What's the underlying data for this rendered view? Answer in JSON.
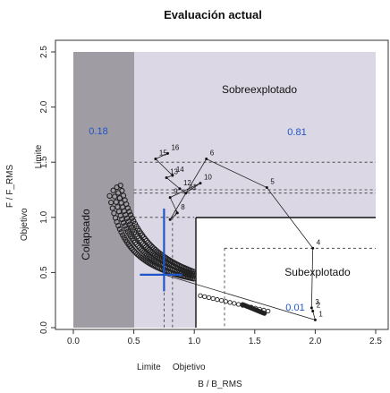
{
  "chart_data": {
    "type": "scatter",
    "title": "Evaluación actual",
    "xlabel": "B / B_RMS",
    "ylabel": "F / F_RMS",
    "xlim": [
      0,
      2.5
    ],
    "ylim": [
      0,
      2.5
    ],
    "x_ticks": [
      "0.0",
      "0.5",
      "1.0",
      "1.5",
      "2.0",
      "2.5"
    ],
    "y_ticks": [
      "0.0",
      "0.5",
      "1.0",
      "1.5",
      "2.0",
      "2.5"
    ],
    "x_ref_labels": [
      {
        "label": "Limite",
        "x": 0.75
      },
      {
        "label": "Objetivo",
        "x": 1.0
      }
    ],
    "y_ref_labels": [
      {
        "label": "Limite",
        "y": 1.55
      },
      {
        "label": "Objetivo",
        "y": 1.0
      }
    ],
    "reference_lines": {
      "b_limit": 0.5,
      "b_target": 1.0,
      "f_target": 1.0,
      "f_dashed": [
        1.5,
        1.25,
        1.22
      ],
      "b_dashed": [
        0.75,
        0.82,
        1.25
      ]
    },
    "regions": [
      {
        "label": "Colapsado",
        "probability": null,
        "color": "#a09ca4"
      },
      {
        "label": "Sobreexplotado",
        "probability": "0.81",
        "color": "#dcd7e4"
      },
      {
        "label": "Subexplotado",
        "probability": "0.01",
        "color": "#ffffff"
      }
    ],
    "colapsado_probability": "0.18",
    "trajectory": [
      {
        "year": "16",
        "x": 0.78,
        "y": 1.58
      },
      {
        "year": "15",
        "x": 0.68,
        "y": 1.53
      },
      {
        "year": "14",
        "x": 0.82,
        "y": 1.38
      },
      {
        "year": "13",
        "x": 0.77,
        "y": 1.36
      },
      {
        "year": "12",
        "x": 0.88,
        "y": 1.26
      },
      {
        "year": "11",
        "x": 0.93,
        "y": 1.22
      },
      {
        "year": "10",
        "x": 1.05,
        "y": 1.31
      },
      {
        "year": "9",
        "x": 0.8,
        "y": 1.18
      },
      {
        "year": "8",
        "x": 0.86,
        "y": 1.04
      },
      {
        "year": "7",
        "x": 0.8,
        "y": 0.98
      },
      {
        "year": "6",
        "x": 1.1,
        "y": 1.53
      },
      {
        "year": "5",
        "x": 1.6,
        "y": 1.27
      },
      {
        "year": "4",
        "x": 1.98,
        "y": 0.72
      },
      {
        "year": "3",
        "x": 1.97,
        "y": 0.18
      },
      {
        "year": "2",
        "x": 1.98,
        "y": 0.15
      },
      {
        "year": "1",
        "x": 2.0,
        "y": 0.07
      }
    ],
    "current_point": {
      "x": 0.75,
      "y": 0.48,
      "x_range": [
        0.55,
        0.9
      ],
      "y_range": [
        0.33,
        1.08
      ]
    },
    "legend": "none",
    "grid": false
  }
}
